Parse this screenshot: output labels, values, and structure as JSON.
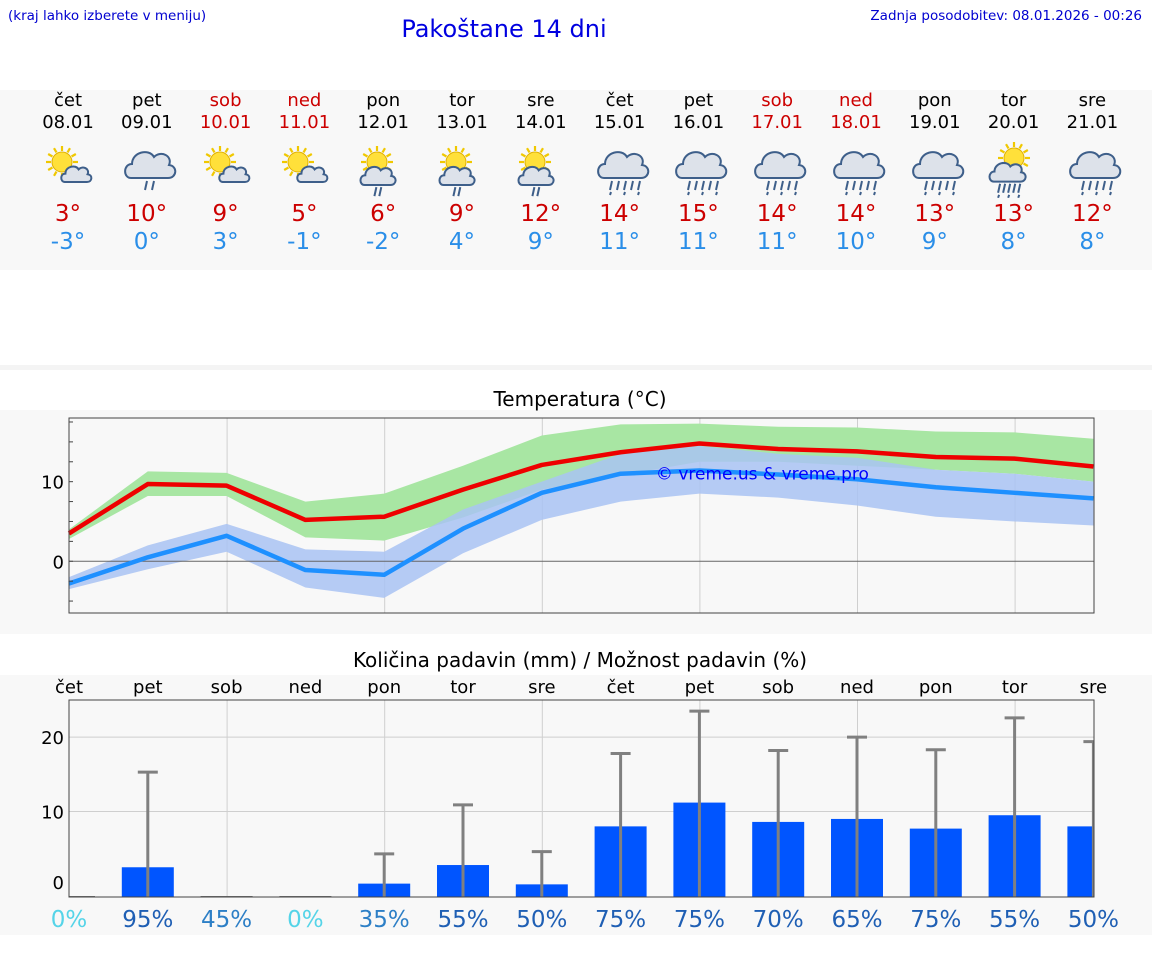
{
  "header": {
    "hint": "(kraj lahko izberete v meniju)",
    "title": "Pakoštane 14 dni",
    "updated": "Zadnja posodobitev: 08.01.2026 - 00:26"
  },
  "days": [
    {
      "name": "čet",
      "date": "08.01",
      "weekend": false,
      "icon": "sun-cloud-icon",
      "tmax": "3°",
      "tmin": "-3°"
    },
    {
      "name": "pet",
      "date": "09.01",
      "weekend": false,
      "icon": "cloud-rain-icon",
      "tmax": "10°",
      "tmin": "0°"
    },
    {
      "name": "sob",
      "date": "10.01",
      "weekend": true,
      "icon": "sun-cloud-icon",
      "tmax": "9°",
      "tmin": "3°"
    },
    {
      "name": "ned",
      "date": "11.01",
      "weekend": true,
      "icon": "sun-cloud-icon",
      "tmax": "5°",
      "tmin": "-1°"
    },
    {
      "name": "pon",
      "date": "12.01",
      "weekend": false,
      "icon": "sun-cloud-rain-icon",
      "tmax": "6°",
      "tmin": "-2°"
    },
    {
      "name": "tor",
      "date": "13.01",
      "weekend": false,
      "icon": "sun-cloud-rain-icon",
      "tmax": "9°",
      "tmin": "4°"
    },
    {
      "name": "sre",
      "date": "14.01",
      "weekend": false,
      "icon": "sun-cloud-rain-icon",
      "tmax": "12°",
      "tmin": "9°"
    },
    {
      "name": "čet",
      "date": "15.01",
      "weekend": false,
      "icon": "cloud-heavy-rain-icon",
      "tmax": "14°",
      "tmin": "11°"
    },
    {
      "name": "pet",
      "date": "16.01",
      "weekend": false,
      "icon": "cloud-heavy-rain-icon",
      "tmax": "15°",
      "tmin": "11°"
    },
    {
      "name": "sob",
      "date": "17.01",
      "weekend": true,
      "icon": "cloud-heavy-rain-icon",
      "tmax": "14°",
      "tmin": "11°"
    },
    {
      "name": "ned",
      "date": "18.01",
      "weekend": true,
      "icon": "cloud-heavy-rain-icon",
      "tmax": "14°",
      "tmin": "10°"
    },
    {
      "name": "pon",
      "date": "19.01",
      "weekend": false,
      "icon": "cloud-heavy-rain-icon",
      "tmax": "13°",
      "tmin": "9°"
    },
    {
      "name": "tor",
      "date": "20.01",
      "weekend": false,
      "icon": "sun-cloud-heavy-rain-icon",
      "tmax": "13°",
      "tmin": "8°"
    },
    {
      "name": "sre",
      "date": "21.01",
      "weekend": false,
      "icon": "cloud-heavy-rain-icon",
      "tmax": "12°",
      "tmin": "8°"
    }
  ],
  "colors": {
    "max_line": "#ee0000",
    "min_line": "#1e90ff",
    "max_band": "#a8e6a3",
    "min_band": "#a9c3f3",
    "bar": "#0055ff",
    "errbar": "#808080"
  },
  "chart_data": [
    {
      "type": "line",
      "title": "Temperatura (°C)",
      "watermark": "© vreme.us & vreme.pro",
      "ylim": [
        -6.5,
        18
      ],
      "yticks": [
        0,
        10
      ],
      "ytick_labels": [
        "0",
        "10"
      ],
      "x_days": [
        0,
        1,
        2,
        3,
        4,
        5,
        6,
        7,
        8,
        9,
        10,
        11,
        12,
        13
      ],
      "series": [
        {
          "name": "max",
          "values": [
            3.5,
            9.7,
            9.5,
            5.2,
            5.6,
            9.0,
            12.1,
            13.7,
            14.8,
            14.1,
            13.8,
            13.1,
            12.9,
            11.9
          ]
        },
        {
          "name": "min",
          "values": [
            -2.8,
            0.5,
            3.2,
            -1.1,
            -1.7,
            4.1,
            8.6,
            11.0,
            11.4,
            10.9,
            10.3,
            9.3,
            8.6,
            7.9
          ]
        }
      ],
      "bands": [
        {
          "name": "max-range",
          "low": [
            2.8,
            8.2,
            8.2,
            3.0,
            2.6,
            5.5,
            9.0,
            10.8,
            12.5,
            12.5,
            12.0,
            11.5,
            11.0,
            10.0
          ],
          "high": [
            4.0,
            11.3,
            11.1,
            7.5,
            8.5,
            12.0,
            15.8,
            17.2,
            17.3,
            16.9,
            16.8,
            16.3,
            16.2,
            15.4
          ]
        },
        {
          "name": "min-range",
          "low": [
            -3.5,
            -1.0,
            1.2,
            -3.3,
            -4.6,
            1.0,
            5.2,
            7.5,
            8.5,
            8.0,
            7.0,
            5.6,
            5.0,
            4.5
          ],
          "high": [
            -2.0,
            2.0,
            4.7,
            1.5,
            1.2,
            6.5,
            10.0,
            13.5,
            14.5,
            13.5,
            13.0,
            11.5,
            11.0,
            10.0
          ]
        }
      ]
    },
    {
      "type": "bar",
      "title": "Količina padavin (mm) / Možnost padavin (%)",
      "categories": [
        "čet",
        "pet",
        "sob",
        "ned",
        "pon",
        "tor",
        "sre",
        "čet",
        "pet",
        "sob",
        "ned",
        "pon",
        "tor",
        "sre"
      ],
      "ylim": [
        -1.5,
        25
      ],
      "yticks": [
        0,
        10,
        20
      ],
      "ytick_labels": [
        "0",
        "10",
        "20"
      ],
      "values": [
        0.0,
        2.5,
        0.0,
        0.0,
        0.3,
        2.8,
        0.2,
        8.0,
        11.2,
        8.6,
        9.0,
        7.7,
        9.5,
        8.0
      ],
      "err_high": [
        0.0,
        15.3,
        0.0,
        0.0,
        4.3,
        10.9,
        4.6,
        17.8,
        23.5,
        18.2,
        20.0,
        18.3,
        22.6,
        19.4
      ],
      "chance_labels": [
        "0%",
        "95%",
        "45%",
        "0%",
        "35%",
        "55%",
        "50%",
        "75%",
        "75%",
        "70%",
        "65%",
        "75%",
        "55%",
        "50%"
      ],
      "chance_colors": [
        "#55d4e8",
        "#1f5fb4",
        "#2d7fc6",
        "#55d4e8",
        "#2d7fc6",
        "#1f5fb4",
        "#1f5fb4",
        "#1f5fb4",
        "#1f5fb4",
        "#1f5fb4",
        "#1f5fb4",
        "#1f5fb4",
        "#1f5fb4",
        "#1f5fb4"
      ]
    }
  ]
}
